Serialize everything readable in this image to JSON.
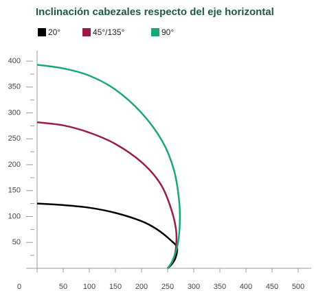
{
  "chart_data": {
    "type": "line",
    "title": "Inclinación cabezales respecto del eje horizontal",
    "series": [
      {
        "name": "20°",
        "color": "#000000",
        "x": [
          0,
          50,
          100,
          150,
          200,
          230,
          255,
          268,
          265,
          258,
          250
        ],
        "values": [
          125,
          122,
          117,
          107,
          91,
          75,
          55,
          40,
          20,
          8,
          0
        ]
      },
      {
        "name": "45°/135°",
        "color": "#9b1b45",
        "x": [
          0,
          50,
          100,
          150,
          200,
          235,
          255,
          266,
          266,
          260,
          250
        ],
        "values": [
          282,
          276,
          262,
          240,
          205,
          165,
          120,
          75,
          40,
          15,
          0
        ]
      },
      {
        "name": "90°",
        "color": "#1aa57e",
        "x": [
          0,
          50,
          100,
          150,
          200,
          240,
          262,
          272,
          273,
          268,
          258,
          250
        ],
        "values": [
          393,
          386,
          372,
          345,
          300,
          245,
          190,
          130,
          80,
          40,
          12,
          0
        ]
      }
    ],
    "xlim": [
      0,
      525
    ],
    "ylim": [
      0,
      420
    ],
    "xticks": [
      0,
      50,
      100,
      150,
      200,
      250,
      300,
      350,
      400,
      450,
      500
    ],
    "yticks": [
      50,
      100,
      150,
      200,
      250,
      300,
      350,
      400
    ]
  }
}
